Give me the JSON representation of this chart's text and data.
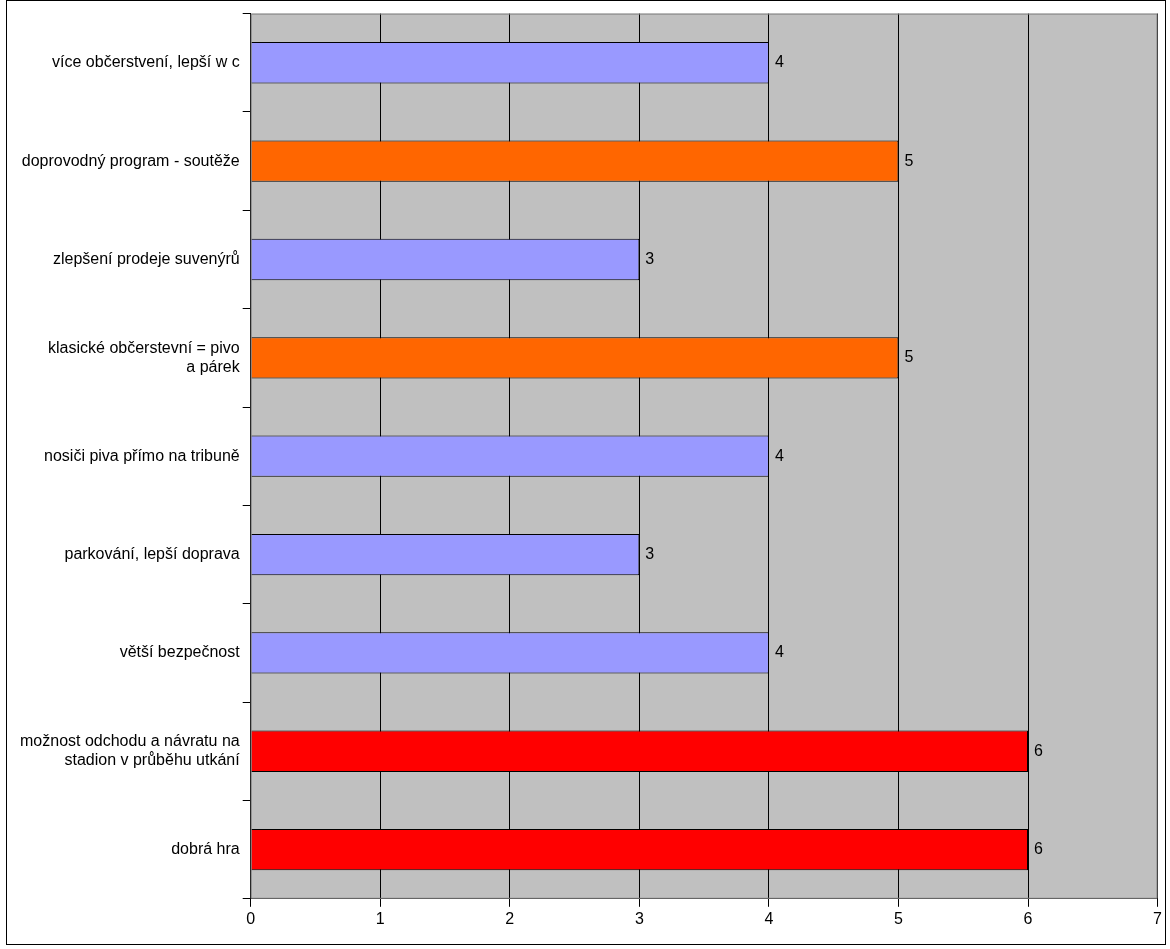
{
  "chart_data": {
    "type": "bar",
    "orientation": "horizontal",
    "categories": [
      "více občerstvení, lepší w c",
      "doprovodný program - soutěže",
      "zlepšení prodeje suvenýrů",
      "klasické občerstevní = pivo a párek",
      "nosiči piva přímo na tribuně",
      "parkování, lepší doprava",
      "větší bezpečnost",
      "možnost odchodu a návratu na stadion v průběhu utkání",
      "dobrá hra"
    ],
    "values": [
      4,
      5,
      3,
      5,
      4,
      3,
      4,
      6,
      6
    ],
    "colors": [
      "#9999ff",
      "#ff6600",
      "#9999ff",
      "#ff6600",
      "#9999ff",
      "#9999ff",
      "#9999ff",
      "#ff0000",
      "#ff0000"
    ],
    "xlim": [
      0,
      7
    ],
    "xticks": [
      0,
      1,
      2,
      3,
      4,
      5,
      6,
      7
    ],
    "grid": "x",
    "data_labels": true,
    "legend": false
  }
}
